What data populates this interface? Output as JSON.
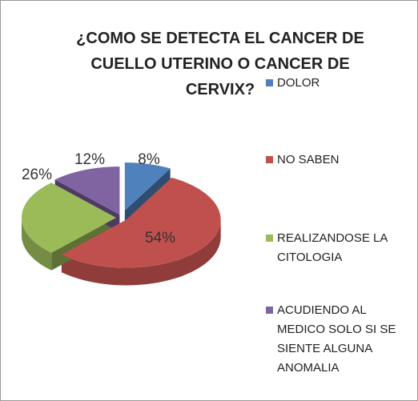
{
  "chart_data": {
    "type": "pie3d",
    "title": "¿COMO SE DETECTA EL CANCER DE CUELLO UTERINO  O CANCER DE CERVIX?",
    "categories": [
      "DOLOR",
      "NO SABEN",
      "REALIZANDOSE LA CITOLOGIA",
      "ACUDIENDO AL MEDICO SOLO SI SE SIENTE ALGUNA ANOMALIA"
    ],
    "values": [
      8,
      54,
      26,
      12
    ],
    "value_labels": [
      "8%",
      "54%",
      "26%",
      "12%"
    ],
    "colors": [
      "#4f81bd",
      "#c0504d",
      "#9bbb59",
      "#8064a2"
    ],
    "legend": "right"
  }
}
